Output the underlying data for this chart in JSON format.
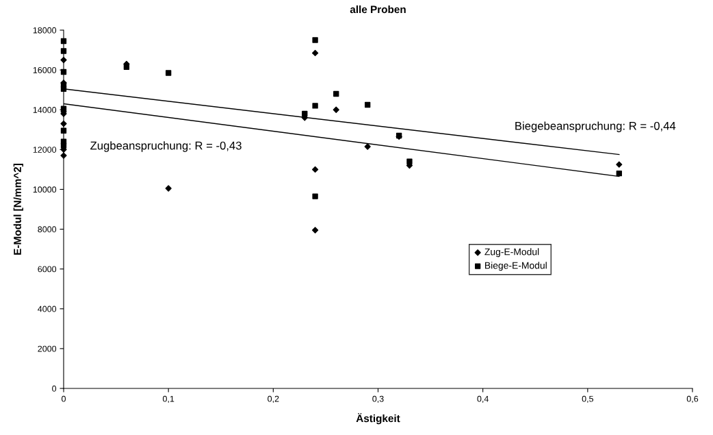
{
  "chart_data": {
    "type": "scatter",
    "title": "alle Proben",
    "xlabel": "Ästigkeit",
    "ylabel": "E-Modul [N/mm^2]",
    "xlim": [
      0,
      0.6
    ],
    "ylim": [
      0,
      18000
    ],
    "xticks": [
      0,
      {
        "value": 0.1,
        "label": "0,1"
      },
      {
        "value": 0.2,
        "label": "0,2"
      },
      {
        "value": 0.3,
        "label": "0,3"
      },
      {
        "value": 0.4,
        "label": "0,4"
      },
      {
        "value": 0.5,
        "label": "0,5"
      },
      {
        "value": 0.6,
        "label": "0,6"
      }
    ],
    "yticks": [
      0,
      2000,
      4000,
      6000,
      8000,
      10000,
      12000,
      14000,
      16000,
      18000
    ],
    "grid": false,
    "legend": "center right",
    "series": [
      {
        "name": "Zug-E-Modul",
        "color": "#000000",
        "marker": "diamond",
        "x": [
          0,
          0,
          0,
          0,
          0,
          0,
          0,
          0.06,
          0.1,
          0.23,
          0.24,
          0.24,
          0.24,
          0.26,
          0.29,
          0.32,
          0.33,
          0.53
        ],
        "values": [
          16500,
          15350,
          13900,
          13800,
          13300,
          12000,
          11700,
          16300,
          10050,
          13600,
          16850,
          11000,
          7950,
          14000,
          12150,
          12650,
          11200,
          11250
        ]
      },
      {
        "name": "Biege-E-Modul",
        "color": "#000000",
        "marker": "square",
        "x": [
          0,
          0,
          0,
          0,
          0,
          0,
          0,
          0,
          0,
          0.06,
          0.1,
          0.23,
          0.24,
          0.24,
          0.24,
          0.26,
          0.29,
          0.32,
          0.33,
          0.53
        ],
        "values": [
          17450,
          16950,
          15900,
          15250,
          15050,
          14050,
          12950,
          12400,
          12200,
          16150,
          15850,
          13800,
          17500,
          14200,
          9650,
          14800,
          14250,
          12700,
          11400,
          10800
        ]
      },
      {
        "type": "line",
        "color": "#000000",
        "marker": "none",
        "line_style": "solid",
        "x": [
          0,
          0.53
        ],
        "values": [
          15050,
          11750
        ]
      },
      {
        "type": "line",
        "color": "#000000",
        "marker": "none",
        "line_style": "solid",
        "x": [
          0,
          0.53
        ],
        "values": [
          14300,
          10650
        ]
      }
    ],
    "annotations": [
      "Biegebeanspruchung: R = -0,44",
      "Zugbeanspruchung: R = -0,43"
    ]
  }
}
